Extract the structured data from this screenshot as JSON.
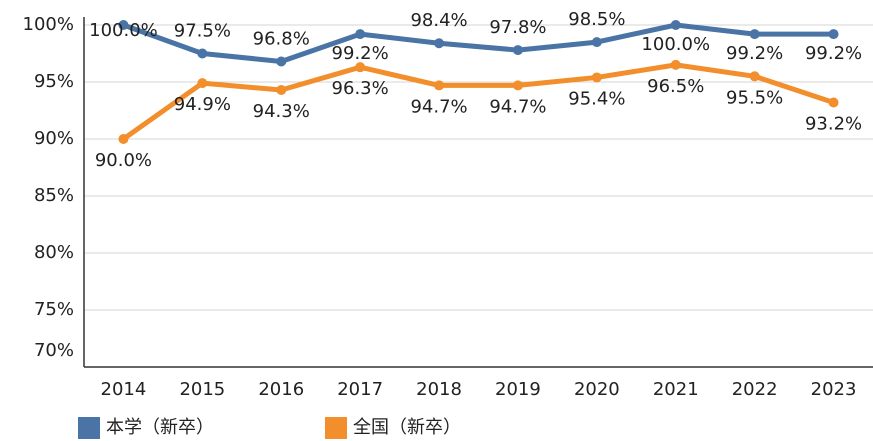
{
  "chart_data": {
    "type": "line",
    "categories": [
      "2014",
      "2015",
      "2016",
      "2017",
      "2018",
      "2019",
      "2020",
      "2021",
      "2022",
      "2023"
    ],
    "series": [
      {
        "name": "本学（新卒）",
        "color": "#4a74a5",
        "values": [
          100.0,
          97.5,
          96.8,
          99.2,
          98.4,
          97.8,
          98.5,
          100.0,
          99.2,
          99.2
        ],
        "value_labels": [
          "100.0%",
          "97.5%",
          "96.8%",
          "99.2%",
          "98.4%",
          "97.8%",
          "98.5%",
          "100.0%",
          "99.2%",
          "99.2%"
        ]
      },
      {
        "name": "全国（新卒）",
        "color": "#f28e2b",
        "values": [
          90.0,
          94.9,
          94.3,
          96.3,
          94.7,
          94.7,
          95.4,
          96.5,
          95.5,
          93.2
        ],
        "value_labels": [
          "90.0%",
          "94.9%",
          "94.3%",
          "96.3%",
          "94.7%",
          "94.7%",
          "95.4%",
          "96.5%",
          "95.5%",
          "93.2%"
        ]
      }
    ],
    "ylim": [
      70,
      100
    ],
    "yticks": [
      {
        "value": 70,
        "label": "70%"
      },
      {
        "value": 75,
        "label": "75%"
      },
      {
        "value": 80,
        "label": "80%"
      },
      {
        "value": 85,
        "label": "85%"
      },
      {
        "value": 90,
        "label": "90%"
      },
      {
        "value": 95,
        "label": "95%"
      },
      {
        "value": 100,
        "label": "100%"
      }
    ],
    "grid": true,
    "legend": "bottom"
  }
}
